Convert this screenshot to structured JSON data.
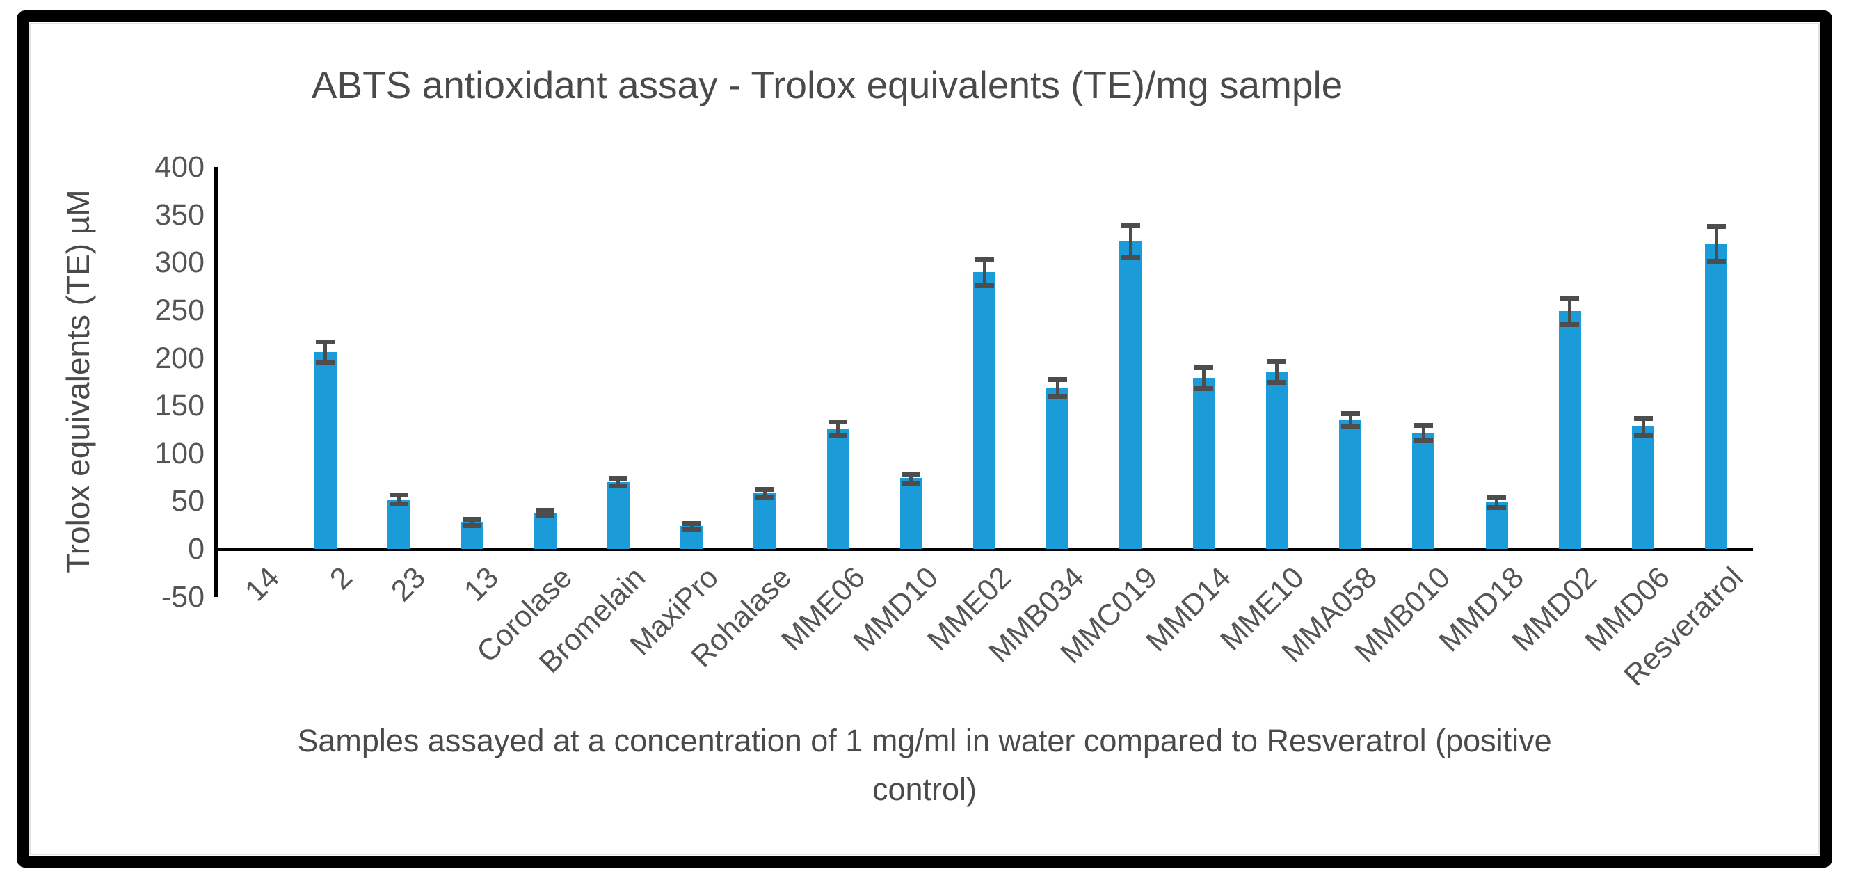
{
  "title": "ABTS antioxidant assay - Trolox equivalents (TE)/mg sample",
  "y_axis": {
    "title": "Trolox equivalents (TE) µM"
  },
  "x_axis": {
    "caption": "Samples assayed at a concentration of 1 mg/ml in water compared to Resveratrol (positive control)"
  },
  "chart_data": {
    "type": "bar",
    "title": "ABTS antioxidant assay - Trolox equivalents (TE)/mg sample",
    "xlabel": "Samples assayed at a concentration of 1 mg/ml in water compared to Resveratrol (positive control)",
    "ylabel": "Trolox equivalents (TE) µM",
    "categories": [
      "14",
      "2",
      "23",
      "13",
      "Corolase",
      "Bromelain",
      "MaxiPro",
      "Rohalase",
      "MME06",
      "MMD10",
      "MME02",
      "MMB034",
      "MMC019",
      "MMD14",
      "MME10",
      "MMA058",
      "MMB010",
      "MMD18",
      "MMD02",
      "MMD06",
      "Resveratrol"
    ],
    "values": [
      0,
      206,
      52,
      28,
      38,
      70,
      24,
      59,
      126,
      74,
      290,
      169,
      322,
      179,
      186,
      135,
      122,
      49,
      249,
      128,
      320
    ],
    "errors": [
      null,
      11,
      5,
      3,
      3,
      4,
      3,
      4,
      7,
      5,
      14,
      9,
      17,
      11,
      11,
      7,
      8,
      5,
      14,
      9,
      18
    ],
    "ylim": [
      -50,
      400
    ],
    "yticks": [
      400,
      350,
      300,
      250,
      200,
      150,
      100,
      50,
      0,
      -50
    ],
    "grid": false,
    "legend": false,
    "bar_color": "#1b9cd8",
    "error_color": "#4d4d4d",
    "axis_color": "#000000",
    "text_color": "#555555"
  }
}
